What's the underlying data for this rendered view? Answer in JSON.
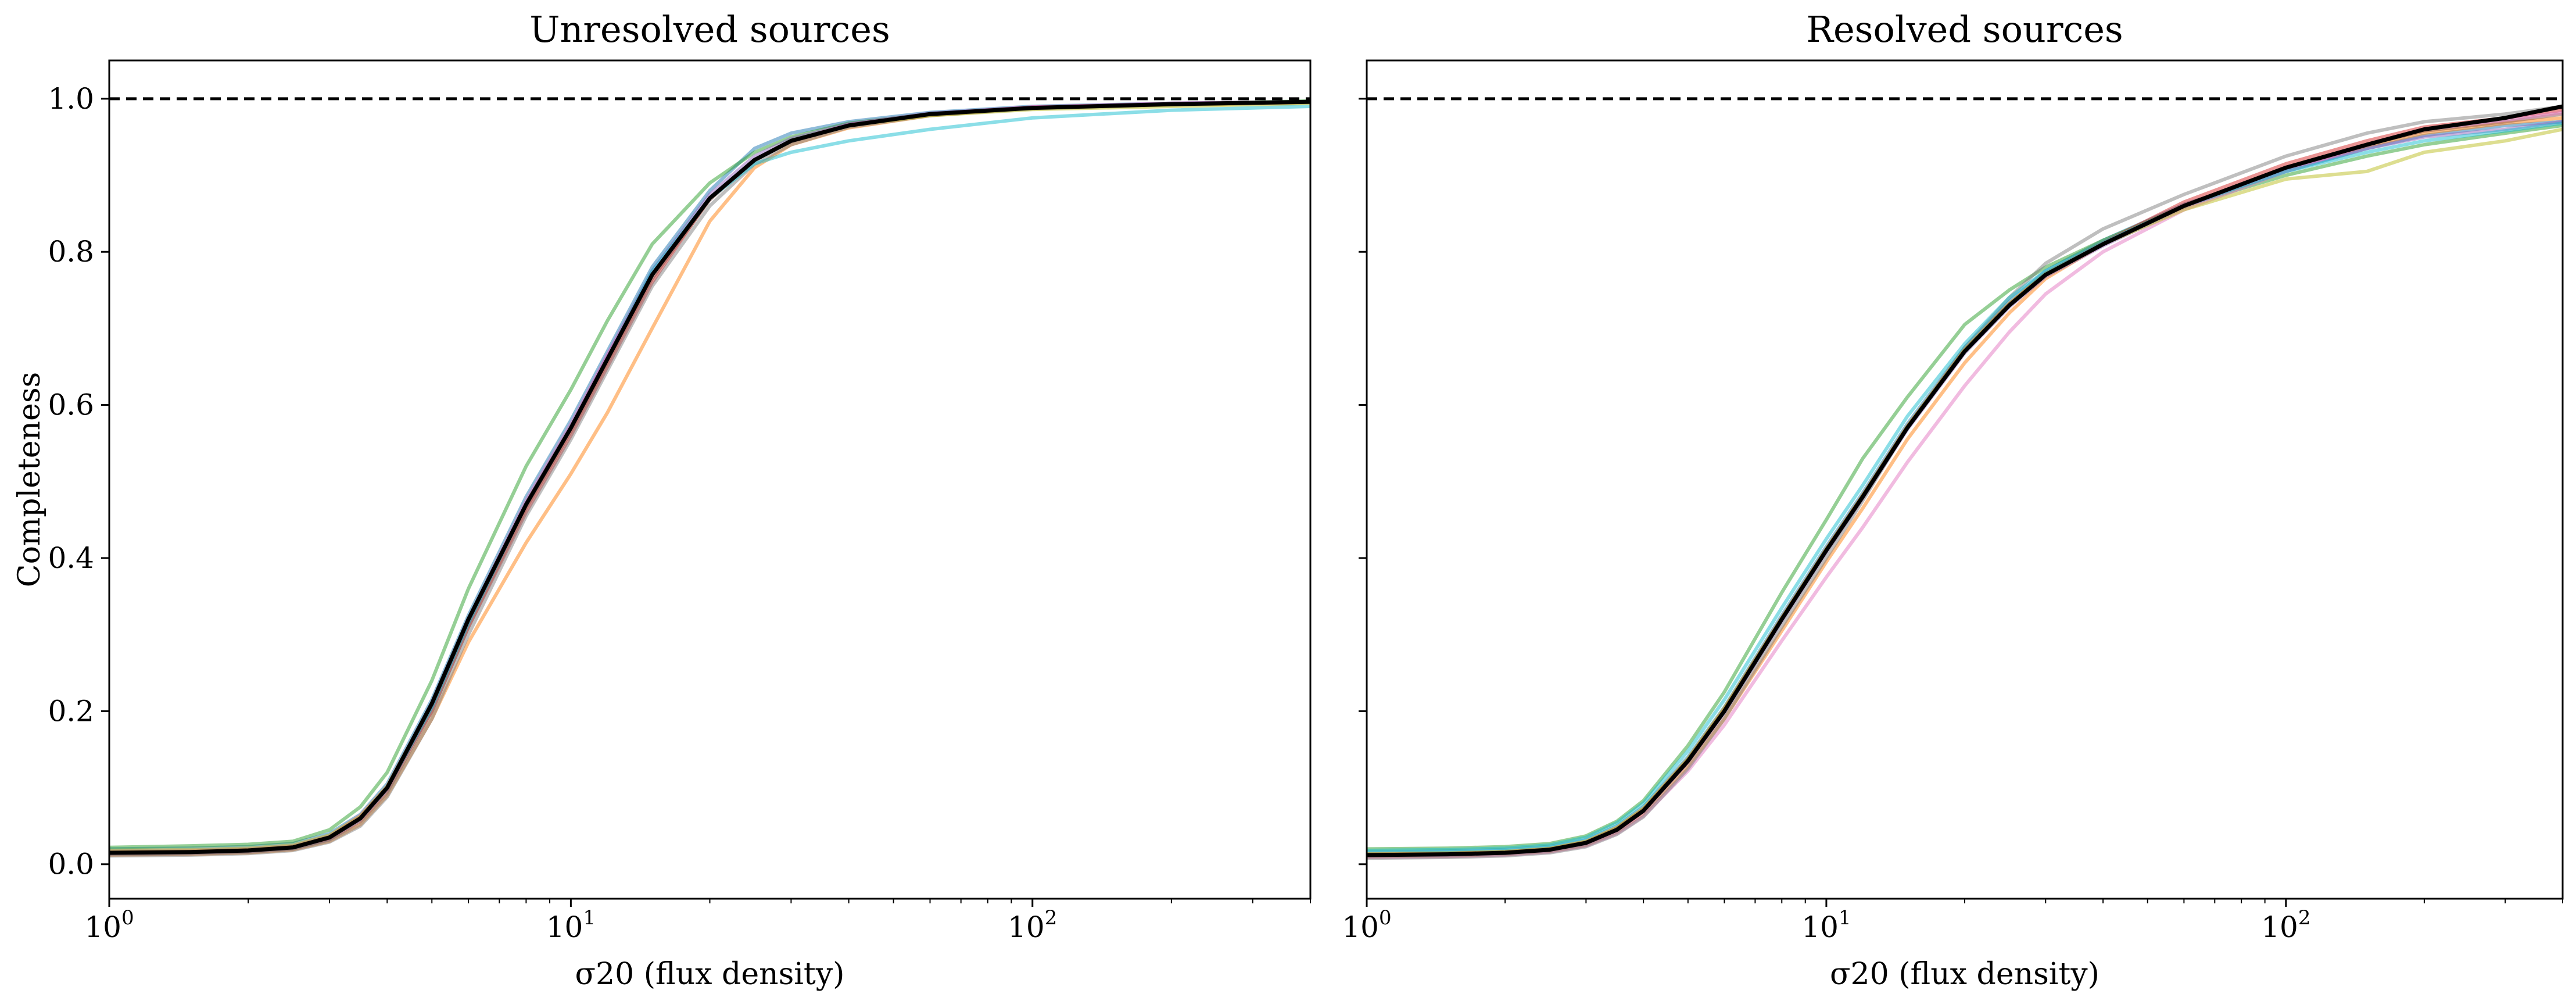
{
  "chart_data": [
    {
      "type": "line",
      "title": "Unresolved sources",
      "xlabel": "σ20 (flux density)",
      "ylabel": "Completeness",
      "xscale": "log",
      "xlim": [
        1,
        400
      ],
      "ylim": [
        -0.045,
        1.05
      ],
      "xticks": [
        {
          "value": 1,
          "label": "10",
          "exp": "0"
        },
        {
          "value": 10,
          "label": "10",
          "exp": "1"
        },
        {
          "value": 100,
          "label": "10",
          "exp": "2"
        }
      ],
      "yticks": [
        {
          "value": 0.0,
          "label": "0.0"
        },
        {
          "value": 0.2,
          "label": "0.2"
        },
        {
          "value": 0.4,
          "label": "0.4"
        },
        {
          "value": 0.6,
          "label": "0.6"
        },
        {
          "value": 0.8,
          "label": "0.8"
        },
        {
          "value": 1.0,
          "label": "1.0"
        }
      ],
      "reference_line": {
        "y": 1.0,
        "style": "dashed",
        "color": "#000000"
      },
      "grid": false,
      "x": [
        1,
        1.5,
        2,
        2.5,
        3,
        3.5,
        4,
        5,
        6,
        8,
        10,
        12,
        15,
        20,
        25,
        30,
        40,
        60,
        100,
        200,
        400
      ],
      "median": [
        0.015,
        0.016,
        0.018,
        0.022,
        0.035,
        0.06,
        0.1,
        0.21,
        0.32,
        0.47,
        0.57,
        0.66,
        0.77,
        0.87,
        0.92,
        0.945,
        0.965,
        0.98,
        0.988,
        0.993,
        0.996
      ],
      "series": [
        {
          "color": "#1f77b4",
          "values": [
            0.02,
            0.021,
            0.023,
            0.027,
            0.04,
            0.065,
            0.105,
            0.215,
            0.325,
            0.48,
            0.58,
            0.67,
            0.78,
            0.88,
            0.935,
            0.955,
            0.97,
            0.982,
            0.99,
            0.994,
            0.996
          ]
        },
        {
          "color": "#ff7f0e",
          "values": [
            0.012,
            0.013,
            0.015,
            0.019,
            0.03,
            0.052,
            0.09,
            0.19,
            0.29,
            0.42,
            0.51,
            0.59,
            0.7,
            0.84,
            0.91,
            0.94,
            0.962,
            0.978,
            0.988,
            0.992,
            0.995
          ]
        },
        {
          "color": "#2ca02c",
          "values": [
            0.022,
            0.024,
            0.026,
            0.03,
            0.045,
            0.075,
            0.12,
            0.24,
            0.36,
            0.52,
            0.62,
            0.71,
            0.81,
            0.89,
            0.93,
            0.95,
            0.968,
            0.98,
            0.988,
            0.993,
            0.997
          ]
        },
        {
          "color": "#d62728",
          "values": [
            0.016,
            0.017,
            0.019,
            0.023,
            0.036,
            0.062,
            0.1,
            0.2,
            0.31,
            0.46,
            0.56,
            0.65,
            0.76,
            0.87,
            0.92,
            0.945,
            0.966,
            0.98,
            0.989,
            0.993,
            0.996
          ]
        },
        {
          "color": "#9467bd",
          "values": [
            0.014,
            0.015,
            0.017,
            0.021,
            0.033,
            0.058,
            0.097,
            0.205,
            0.315,
            0.47,
            0.57,
            0.665,
            0.775,
            0.875,
            0.925,
            0.948,
            0.967,
            0.981,
            0.989,
            0.994,
            0.996
          ]
        },
        {
          "color": "#8c564b",
          "values": [
            0.013,
            0.014,
            0.016,
            0.02,
            0.032,
            0.056,
            0.094,
            0.2,
            0.31,
            0.465,
            0.565,
            0.655,
            0.765,
            0.868,
            0.92,
            0.944,
            0.965,
            0.979,
            0.988,
            0.993,
            0.996
          ]
        },
        {
          "color": "#e377c2",
          "values": [
            0.017,
            0.018,
            0.02,
            0.024,
            0.037,
            0.064,
            0.102,
            0.21,
            0.32,
            0.475,
            0.575,
            0.665,
            0.77,
            0.87,
            0.92,
            0.945,
            0.966,
            0.98,
            0.989,
            0.994,
            0.996
          ]
        },
        {
          "color": "#7f7f7f",
          "values": [
            0.011,
            0.012,
            0.014,
            0.018,
            0.029,
            0.05,
            0.088,
            0.19,
            0.3,
            0.455,
            0.555,
            0.645,
            0.755,
            0.86,
            0.915,
            0.94,
            0.963,
            0.978,
            0.987,
            0.992,
            0.995
          ]
        },
        {
          "color": "#bcbd22",
          "values": [
            0.018,
            0.019,
            0.021,
            0.025,
            0.038,
            0.063,
            0.102,
            0.21,
            0.32,
            0.47,
            0.57,
            0.66,
            0.77,
            0.87,
            0.92,
            0.945,
            0.965,
            0.978,
            0.986,
            0.99,
            0.994
          ]
        },
        {
          "color": "#17becf",
          "values": [
            0.015,
            0.016,
            0.018,
            0.022,
            0.035,
            0.06,
            0.1,
            0.205,
            0.315,
            0.47,
            0.57,
            0.66,
            0.775,
            0.87,
            0.915,
            0.93,
            0.945,
            0.96,
            0.975,
            0.985,
            0.99
          ]
        }
      ]
    },
    {
      "type": "line",
      "title": "Resolved sources",
      "xlabel": "σ20 (flux density)",
      "ylabel": "",
      "xscale": "log",
      "xlim": [
        1,
        400
      ],
      "ylim": [
        -0.045,
        1.05
      ],
      "xticks": [
        {
          "value": 1,
          "label": "10",
          "exp": "0"
        },
        {
          "value": 10,
          "label": "10",
          "exp": "1"
        },
        {
          "value": 100,
          "label": "10",
          "exp": "2"
        }
      ],
      "yticks": [
        {
          "value": 0.0,
          "label": ""
        },
        {
          "value": 0.2,
          "label": ""
        },
        {
          "value": 0.4,
          "label": ""
        },
        {
          "value": 0.6,
          "label": ""
        },
        {
          "value": 0.8,
          "label": ""
        },
        {
          "value": 1.0,
          "label": ""
        }
      ],
      "reference_line": {
        "y": 1.0,
        "style": "dashed",
        "color": "#000000"
      },
      "grid": false,
      "x": [
        1,
        1.5,
        2,
        2.5,
        3,
        3.5,
        4,
        5,
        6,
        8,
        10,
        12,
        15,
        20,
        25,
        30,
        40,
        60,
        100,
        150,
        200,
        300,
        400
      ],
      "median": [
        0.012,
        0.013,
        0.015,
        0.019,
        0.028,
        0.045,
        0.07,
        0.135,
        0.2,
        0.32,
        0.41,
        0.48,
        0.57,
        0.67,
        0.73,
        0.77,
        0.81,
        0.86,
        0.91,
        0.94,
        0.96,
        0.975,
        0.99
      ],
      "series": [
        {
          "color": "#1f77b4",
          "values": [
            0.016,
            0.017,
            0.019,
            0.023,
            0.032,
            0.05,
            0.075,
            0.14,
            0.205,
            0.325,
            0.415,
            0.485,
            0.575,
            0.675,
            0.735,
            0.775,
            0.815,
            0.862,
            0.905,
            0.935,
            0.952,
            0.965,
            0.97
          ]
        },
        {
          "color": "#ff7f0e",
          "values": [
            0.01,
            0.011,
            0.013,
            0.017,
            0.025,
            0.042,
            0.066,
            0.128,
            0.19,
            0.305,
            0.395,
            0.465,
            0.555,
            0.655,
            0.72,
            0.765,
            0.81,
            0.86,
            0.91,
            0.938,
            0.955,
            0.968,
            0.975
          ]
        },
        {
          "color": "#2ca02c",
          "values": [
            0.02,
            0.021,
            0.023,
            0.027,
            0.037,
            0.056,
            0.083,
            0.155,
            0.225,
            0.355,
            0.45,
            0.53,
            0.61,
            0.705,
            0.75,
            0.78,
            0.815,
            0.86,
            0.9,
            0.925,
            0.94,
            0.955,
            0.965
          ]
        },
        {
          "color": "#d62728",
          "values": [
            0.013,
            0.014,
            0.016,
            0.02,
            0.029,
            0.047,
            0.072,
            0.137,
            0.203,
            0.322,
            0.412,
            0.482,
            0.572,
            0.672,
            0.732,
            0.772,
            0.812,
            0.865,
            0.915,
            0.945,
            0.963,
            0.975,
            0.985
          ]
        },
        {
          "color": "#9467bd",
          "values": [
            0.011,
            0.012,
            0.014,
            0.018,
            0.027,
            0.044,
            0.069,
            0.133,
            0.198,
            0.318,
            0.408,
            0.478,
            0.568,
            0.668,
            0.728,
            0.768,
            0.808,
            0.858,
            0.908,
            0.935,
            0.95,
            0.96,
            0.97
          ]
        },
        {
          "color": "#8c564b",
          "values": [
            0.012,
            0.013,
            0.015,
            0.019,
            0.028,
            0.045,
            0.07,
            0.135,
            0.2,
            0.32,
            0.41,
            0.48,
            0.57,
            0.67,
            0.73,
            0.77,
            0.81,
            0.86,
            0.91,
            0.94,
            0.958,
            0.97,
            0.98
          ]
        },
        {
          "color": "#e377c2",
          "values": [
            0.009,
            0.01,
            0.012,
            0.016,
            0.024,
            0.04,
            0.063,
            0.122,
            0.182,
            0.292,
            0.375,
            0.44,
            0.525,
            0.625,
            0.695,
            0.745,
            0.8,
            0.855,
            0.905,
            0.94,
            0.96,
            0.972,
            0.982
          ]
        },
        {
          "color": "#7f7f7f",
          "values": [
            0.008,
            0.009,
            0.011,
            0.015,
            0.023,
            0.039,
            0.062,
            0.125,
            0.19,
            0.31,
            0.4,
            0.475,
            0.57,
            0.675,
            0.74,
            0.785,
            0.83,
            0.875,
            0.925,
            0.955,
            0.97,
            0.98,
            0.99
          ]
        },
        {
          "color": "#bcbd22",
          "values": [
            0.014,
            0.015,
            0.017,
            0.021,
            0.03,
            0.048,
            0.073,
            0.138,
            0.204,
            0.322,
            0.412,
            0.482,
            0.572,
            0.672,
            0.732,
            0.772,
            0.81,
            0.855,
            0.895,
            0.905,
            0.93,
            0.945,
            0.96
          ]
        },
        {
          "color": "#17becf",
          "values": [
            0.018,
            0.019,
            0.021,
            0.025,
            0.035,
            0.054,
            0.08,
            0.148,
            0.215,
            0.335,
            0.425,
            0.495,
            0.585,
            0.68,
            0.74,
            0.775,
            0.812,
            0.86,
            0.905,
            0.93,
            0.945,
            0.958,
            0.968
          ]
        }
      ]
    }
  ]
}
